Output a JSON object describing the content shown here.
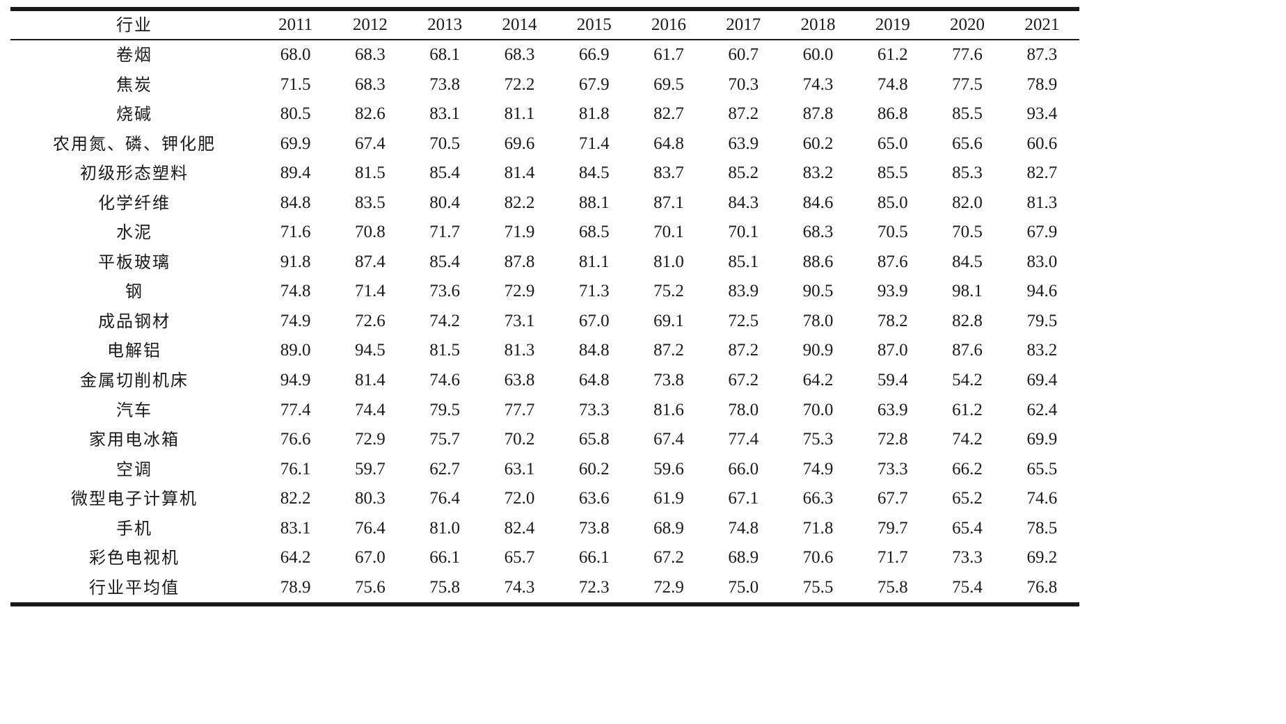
{
  "table": {
    "header_label": "行业",
    "years": [
      "2011",
      "2012",
      "2013",
      "2014",
      "2015",
      "2016",
      "2017",
      "2018",
      "2019",
      "2020",
      "2021"
    ],
    "rows": [
      {
        "industry": "卷烟",
        "values": [
          "68.0",
          "68.3",
          "68.1",
          "68.3",
          "66.9",
          "61.7",
          "60.7",
          "60.0",
          "61.2",
          "77.6",
          "87.3"
        ]
      },
      {
        "industry": "焦炭",
        "values": [
          "71.5",
          "68.3",
          "73.8",
          "72.2",
          "67.9",
          "69.5",
          "70.3",
          "74.3",
          "74.8",
          "77.5",
          "78.9"
        ]
      },
      {
        "industry": "烧碱",
        "values": [
          "80.5",
          "82.6",
          "83.1",
          "81.1",
          "81.8",
          "82.7",
          "87.2",
          "87.8",
          "86.8",
          "85.5",
          "93.4"
        ]
      },
      {
        "industry": "农用氮、磷、钾化肥",
        "values": [
          "69.9",
          "67.4",
          "70.5",
          "69.6",
          "71.4",
          "64.8",
          "63.9",
          "60.2",
          "65.0",
          "65.6",
          "60.6"
        ]
      },
      {
        "industry": "初级形态塑料",
        "values": [
          "89.4",
          "81.5",
          "85.4",
          "81.4",
          "84.5",
          "83.7",
          "85.2",
          "83.2",
          "85.5",
          "85.3",
          "82.7"
        ]
      },
      {
        "industry": "化学纤维",
        "values": [
          "84.8",
          "83.5",
          "80.4",
          "82.2",
          "88.1",
          "87.1",
          "84.3",
          "84.6",
          "85.0",
          "82.0",
          "81.3"
        ]
      },
      {
        "industry": "水泥",
        "values": [
          "71.6",
          "70.8",
          "71.7",
          "71.9",
          "68.5",
          "70.1",
          "70.1",
          "68.3",
          "70.5",
          "70.5",
          "67.9"
        ]
      },
      {
        "industry": "平板玻璃",
        "values": [
          "91.8",
          "87.4",
          "85.4",
          "87.8",
          "81.1",
          "81.0",
          "85.1",
          "88.6",
          "87.6",
          "84.5",
          "83.0"
        ]
      },
      {
        "industry": "钢",
        "values": [
          "74.8",
          "71.4",
          "73.6",
          "72.9",
          "71.3",
          "75.2",
          "83.9",
          "90.5",
          "93.9",
          "98.1",
          "94.6"
        ]
      },
      {
        "industry": "成品钢材",
        "values": [
          "74.9",
          "72.6",
          "74.2",
          "73.1",
          "67.0",
          "69.1",
          "72.5",
          "78.0",
          "78.2",
          "82.8",
          "79.5"
        ]
      },
      {
        "industry": "电解铝",
        "values": [
          "89.0",
          "94.5",
          "81.5",
          "81.3",
          "84.8",
          "87.2",
          "87.2",
          "90.9",
          "87.0",
          "87.6",
          "83.2"
        ]
      },
      {
        "industry": "金属切削机床",
        "values": [
          "94.9",
          "81.4",
          "74.6",
          "63.8",
          "64.8",
          "73.8",
          "67.2",
          "64.2",
          "59.4",
          "54.2",
          "69.4"
        ]
      },
      {
        "industry": "汽车",
        "values": [
          "77.4",
          "74.4",
          "79.5",
          "77.7",
          "73.3",
          "81.6",
          "78.0",
          "70.0",
          "63.9",
          "61.2",
          "62.4"
        ]
      },
      {
        "industry": "家用电冰箱",
        "values": [
          "76.6",
          "72.9",
          "75.7",
          "70.2",
          "65.8",
          "67.4",
          "77.4",
          "75.3",
          "72.8",
          "74.2",
          "69.9"
        ]
      },
      {
        "industry": "空调",
        "values": [
          "76.1",
          "59.7",
          "62.7",
          "63.1",
          "60.2",
          "59.6",
          "66.0",
          "74.9",
          "73.3",
          "66.2",
          "65.5"
        ]
      },
      {
        "industry": "微型电子计算机",
        "values": [
          "82.2",
          "80.3",
          "76.4",
          "72.0",
          "63.6",
          "61.9",
          "67.1",
          "66.3",
          "67.7",
          "65.2",
          "74.6"
        ]
      },
      {
        "industry": "手机",
        "values": [
          "83.1",
          "76.4",
          "81.0",
          "82.4",
          "73.8",
          "68.9",
          "74.8",
          "71.8",
          "79.7",
          "65.4",
          "78.5"
        ]
      },
      {
        "industry": "彩色电视机",
        "values": [
          "64.2",
          "67.0",
          "66.1",
          "65.7",
          "66.1",
          "67.2",
          "68.9",
          "70.6",
          "71.7",
          "73.3",
          "69.2"
        ]
      },
      {
        "industry": "行业平均值",
        "values": [
          "78.9",
          "75.6",
          "75.8",
          "74.3",
          "72.3",
          "72.9",
          "75.0",
          "75.5",
          "75.8",
          "75.4",
          "76.8"
        ]
      }
    ]
  }
}
